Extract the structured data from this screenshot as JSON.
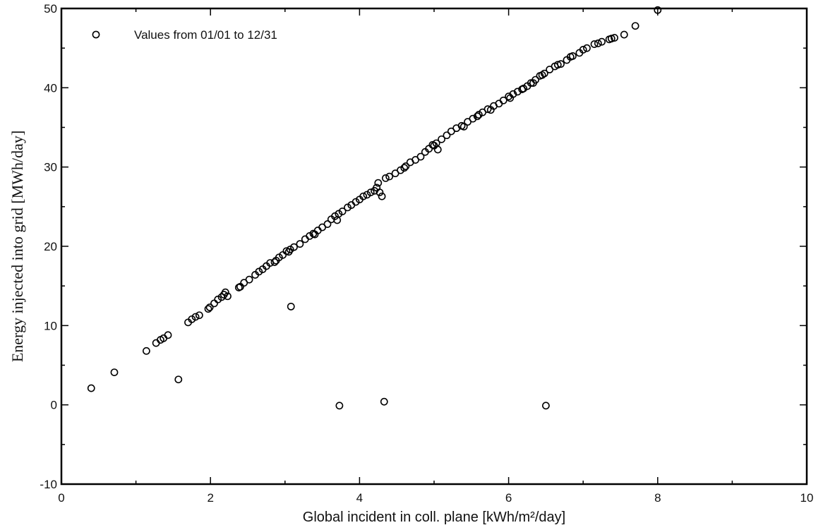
{
  "chart_data": {
    "type": "scatter",
    "title": "",
    "xlabel": "Global incident in coll. plane [kWh/m²/day]",
    "ylabel": "Energy injected into grid [MWh/day]",
    "xlim": [
      0,
      10
    ],
    "ylim": [
      -10,
      50
    ],
    "xticks": [
      0,
      2,
      4,
      6,
      8,
      10
    ],
    "yticks": [
      -10,
      0,
      10,
      20,
      30,
      40,
      50
    ],
    "grid": false,
    "legend": {
      "placement": "top-left",
      "entries": [
        "Values from 01/01 to 12/31"
      ]
    },
    "series": [
      {
        "name": "Values from 01/01 to 12/31",
        "marker": "open-circle",
        "points": [
          [
            0.4,
            2.1
          ],
          [
            0.71,
            4.1
          ],
          [
            1.14,
            6.8
          ],
          [
            1.57,
            3.2
          ],
          [
            1.27,
            7.8
          ],
          [
            1.33,
            8.2
          ],
          [
            1.37,
            8.4
          ],
          [
            1.43,
            8.8
          ],
          [
            1.7,
            10.4
          ],
          [
            1.75,
            10.8
          ],
          [
            1.8,
            11.1
          ],
          [
            1.85,
            11.3
          ],
          [
            1.97,
            12.1
          ],
          [
            1.99,
            12.3
          ],
          [
            2.05,
            12.8
          ],
          [
            2.1,
            13.3
          ],
          [
            2.15,
            13.6
          ],
          [
            2.18,
            13.9
          ],
          [
            2.2,
            14.2
          ],
          [
            2.23,
            13.7
          ],
          [
            2.38,
            14.8
          ],
          [
            2.45,
            15.4
          ],
          [
            2.52,
            15.8
          ],
          [
            2.6,
            16.4
          ],
          [
            2.65,
            16.8
          ],
          [
            2.7,
            17.1
          ],
          [
            2.75,
            17.5
          ],
          [
            2.8,
            17.9
          ],
          [
            2.86,
            18.0
          ],
          [
            2.92,
            18.6
          ],
          [
            2.97,
            18.9
          ],
          [
            3.02,
            19.4
          ],
          [
            3.07,
            19.6
          ],
          [
            3.12,
            19.9
          ],
          [
            3.2,
            20.3
          ],
          [
            3.27,
            20.9
          ],
          [
            3.33,
            21.3
          ],
          [
            3.38,
            21.6
          ],
          [
            3.44,
            22.0
          ],
          [
            3.5,
            22.4
          ],
          [
            3.57,
            22.8
          ],
          [
            3.62,
            23.4
          ],
          [
            3.67,
            23.8
          ],
          [
            3.72,
            24.1
          ],
          [
            3.77,
            24.4
          ],
          [
            3.84,
            24.9
          ],
          [
            3.89,
            25.2
          ],
          [
            3.95,
            25.6
          ],
          [
            4.0,
            25.9
          ],
          [
            4.05,
            26.3
          ],
          [
            4.15,
            26.8
          ],
          [
            4.2,
            27.0
          ],
          [
            4.23,
            27.4
          ],
          [
            4.25,
            28.0
          ],
          [
            4.3,
            26.3
          ],
          [
            4.35,
            28.6
          ],
          [
            4.4,
            28.8
          ],
          [
            4.48,
            29.2
          ],
          [
            4.55,
            29.6
          ],
          [
            4.62,
            30.1
          ],
          [
            4.68,
            30.6
          ],
          [
            4.75,
            30.9
          ],
          [
            4.82,
            31.3
          ],
          [
            4.88,
            31.9
          ],
          [
            4.93,
            32.3
          ],
          [
            4.98,
            32.8
          ],
          [
            5.03,
            33.0
          ],
          [
            5.1,
            33.5
          ],
          [
            5.17,
            34.0
          ],
          [
            5.23,
            34.5
          ],
          [
            5.3,
            34.9
          ],
          [
            5.37,
            35.2
          ],
          [
            5.45,
            35.7
          ],
          [
            5.52,
            36.1
          ],
          [
            5.58,
            36.4
          ],
          [
            5.65,
            36.9
          ],
          [
            5.72,
            37.3
          ],
          [
            5.8,
            37.7
          ],
          [
            5.87,
            38.0
          ],
          [
            5.93,
            38.4
          ],
          [
            6.0,
            38.9
          ],
          [
            6.06,
            39.2
          ],
          [
            6.12,
            39.5
          ],
          [
            6.18,
            39.8
          ],
          [
            6.25,
            40.2
          ],
          [
            6.3,
            40.6
          ],
          [
            6.36,
            41.0
          ],
          [
            6.42,
            41.5
          ],
          [
            6.48,
            41.8
          ],
          [
            6.55,
            42.3
          ],
          [
            6.62,
            42.7
          ],
          [
            6.7,
            43.0
          ],
          [
            6.78,
            43.5
          ],
          [
            6.86,
            44.0
          ],
          [
            6.95,
            44.4
          ],
          [
            7.05,
            45.0
          ],
          [
            7.15,
            45.5
          ],
          [
            7.25,
            45.8
          ],
          [
            7.35,
            46.1
          ],
          [
            7.42,
            46.3
          ],
          [
            7.55,
            46.7
          ],
          [
            7.7,
            47.8
          ],
          [
            8.0,
            49.8
          ],
          [
            2.4,
            14.9
          ],
          [
            2.88,
            18.2
          ],
          [
            3.05,
            19.3
          ],
          [
            3.4,
            21.5
          ],
          [
            3.7,
            23.3
          ],
          [
            4.1,
            26.5
          ],
          [
            4.27,
            26.8
          ],
          [
            4.6,
            29.9
          ],
          [
            5.0,
            32.7
          ],
          [
            5.05,
            32.2
          ],
          [
            5.4,
            35.1
          ],
          [
            5.6,
            36.6
          ],
          [
            5.76,
            37.2
          ],
          [
            6.02,
            38.7
          ],
          [
            6.2,
            39.9
          ],
          [
            6.33,
            40.6
          ],
          [
            6.45,
            41.6
          ],
          [
            6.66,
            42.9
          ],
          [
            6.83,
            43.9
          ],
          [
            7.0,
            44.8
          ],
          [
            7.2,
            45.6
          ],
          [
            7.38,
            46.2
          ],
          [
            3.08,
            12.4
          ],
          [
            3.73,
            -0.1
          ],
          [
            4.33,
            0.4
          ],
          [
            6.5,
            -0.1
          ]
        ]
      }
    ]
  }
}
